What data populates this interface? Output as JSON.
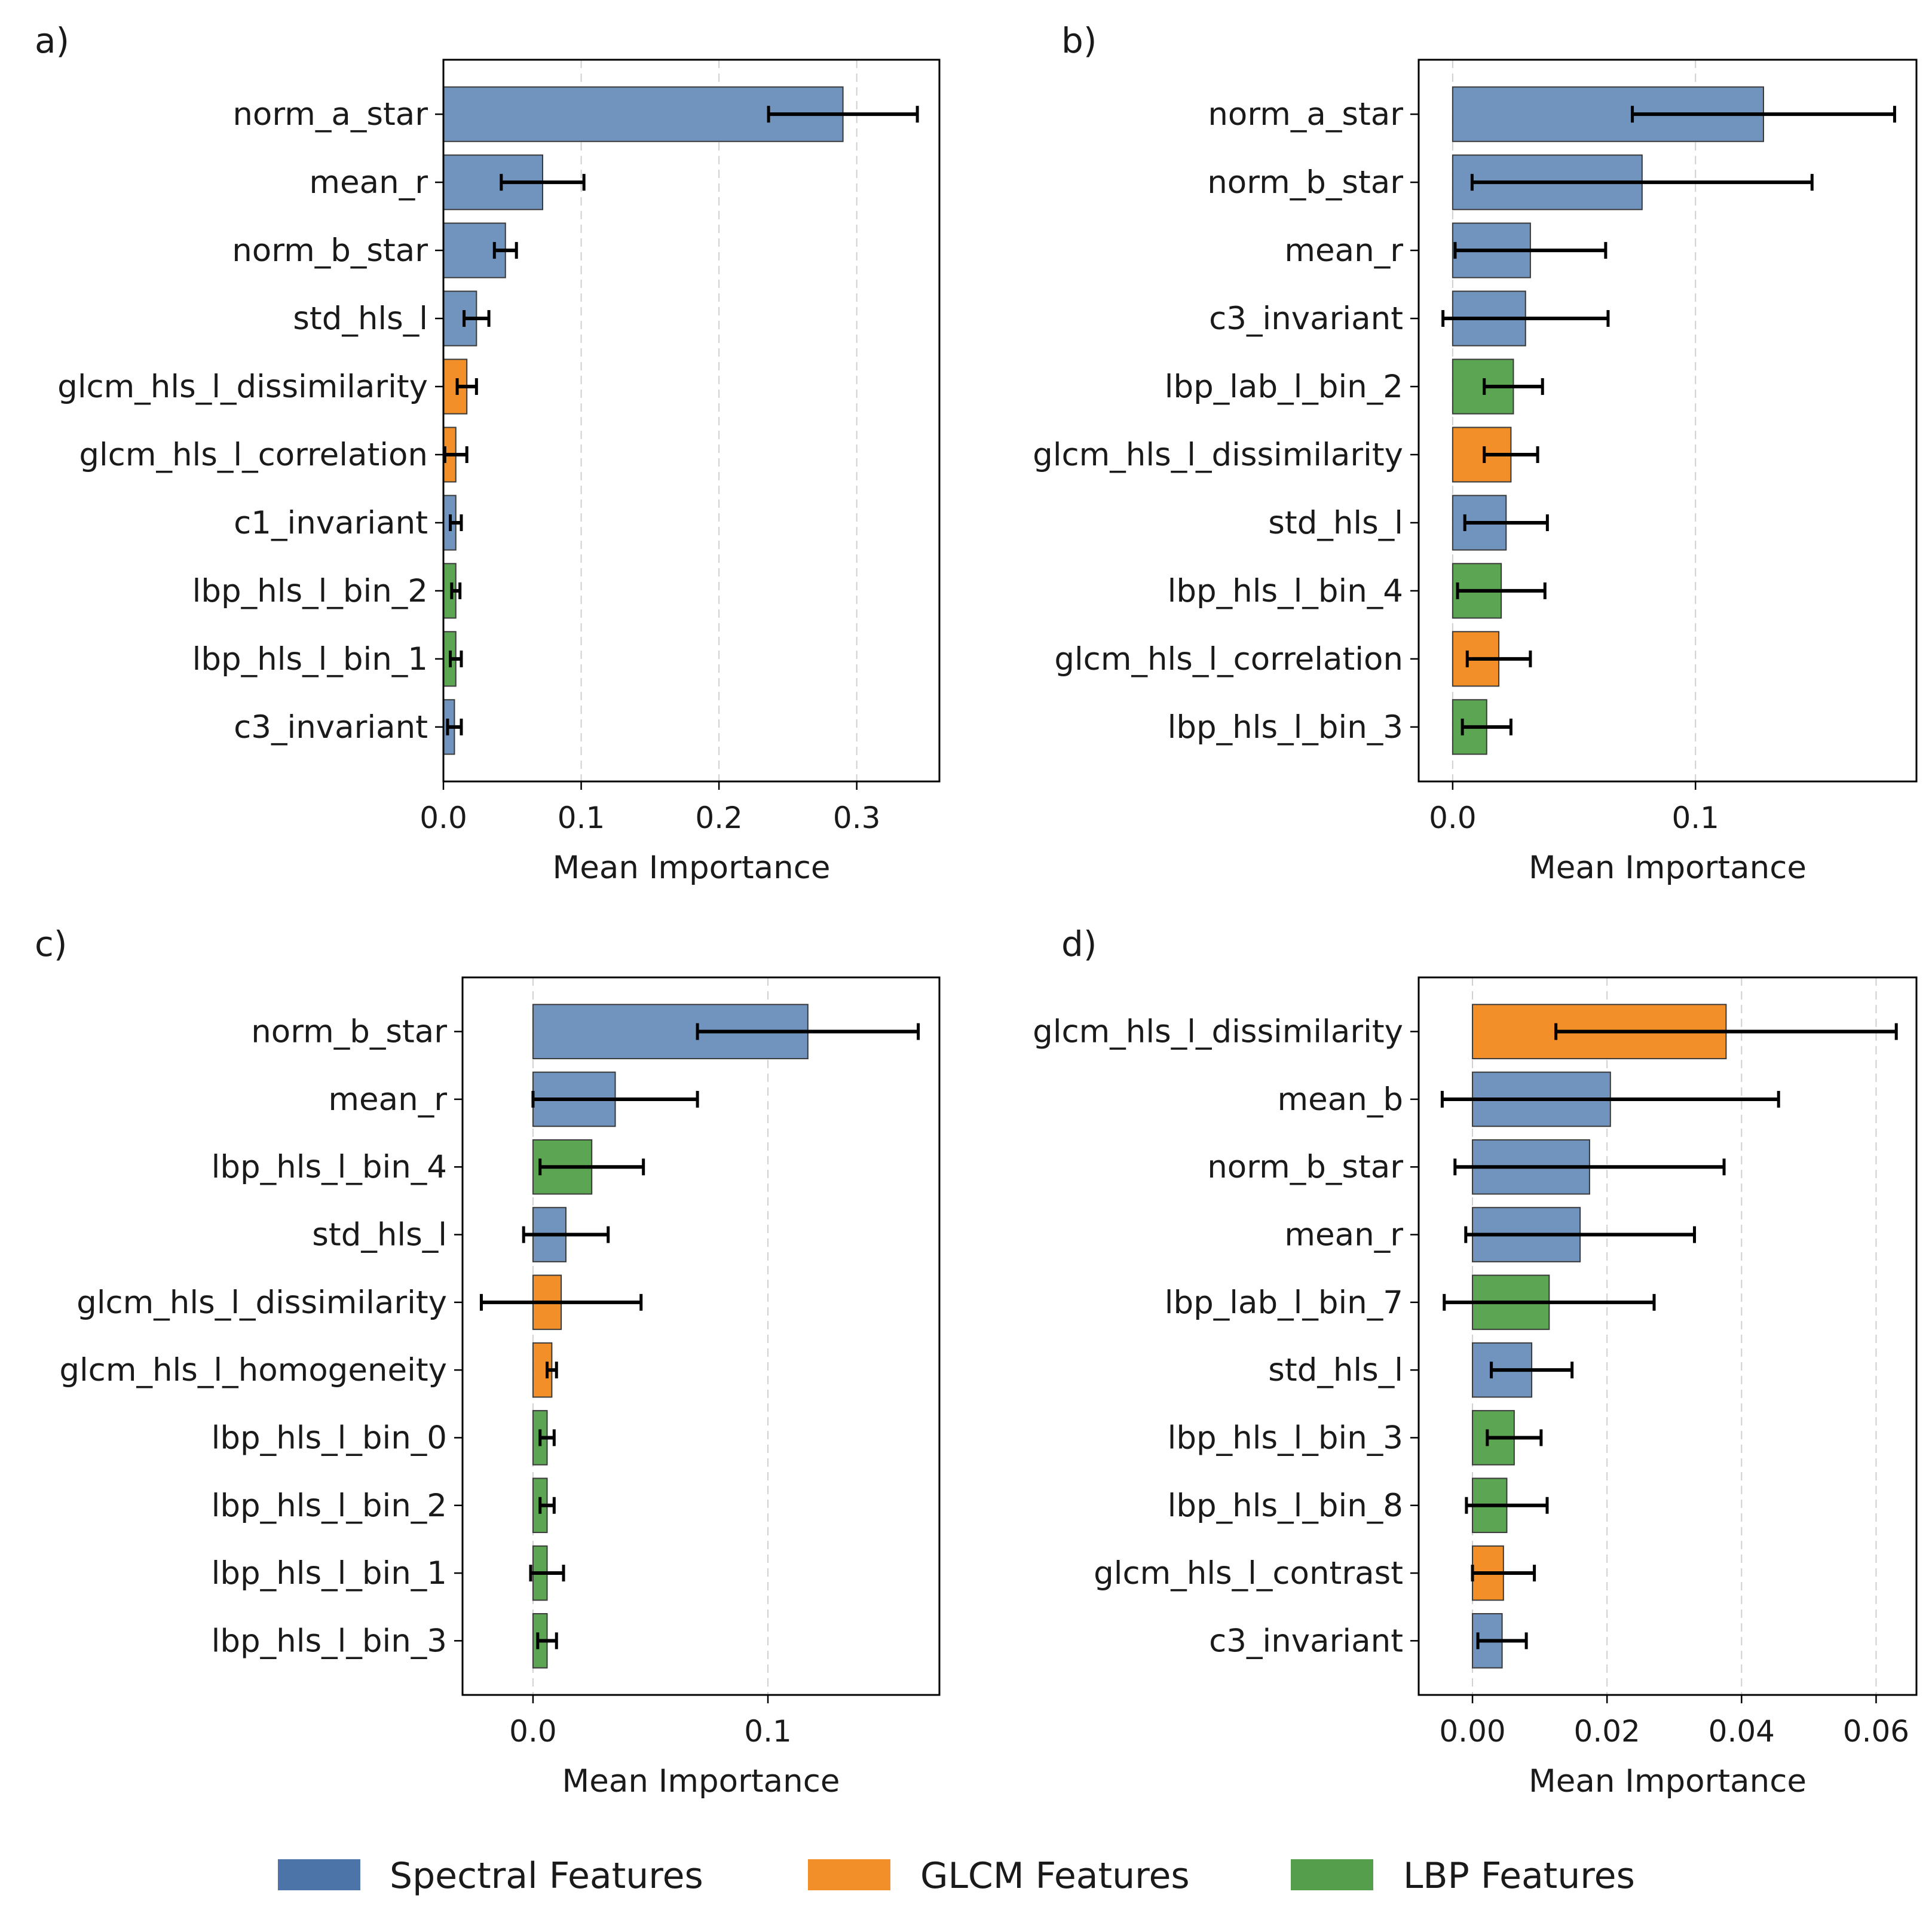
{
  "colors": {
    "spectral": "#7094BD",
    "glcm": "#F28F28",
    "lbp": "#5CA552",
    "legend_spectral": "#4C74A8",
    "legend_glcm": "#F28F28",
    "legend_lbp": "#559E4C",
    "grid": "#d0d0d0",
    "error_bar": "#000000"
  },
  "legend": {
    "items": [
      {
        "label": "Spectral Features",
        "group": "spectral"
      },
      {
        "label": "GLCM Features",
        "group": "glcm"
      },
      {
        "label": "LBP Features",
        "group": "lbp"
      }
    ],
    "placement": "bottom-center"
  },
  "chart_data": [
    {
      "panel_label": "a)",
      "type": "bar",
      "orientation": "horizontal",
      "xlabel": "Mean Importance",
      "xlim": [
        0.0,
        0.36
      ],
      "xticks": [
        0.0,
        0.1,
        0.2,
        0.3
      ],
      "xtick_labels": [
        "0.0",
        "0.1",
        "0.2",
        "0.3"
      ],
      "grid": "x-dashed",
      "bars": [
        {
          "label": "norm_a_star",
          "value": 0.29,
          "error": 0.054,
          "group": "spectral"
        },
        {
          "label": "mean_r",
          "value": 0.072,
          "error": 0.03,
          "group": "spectral"
        },
        {
          "label": "norm_b_star",
          "value": 0.045,
          "error": 0.008,
          "group": "spectral"
        },
        {
          "label": "std_hls_l",
          "value": 0.024,
          "error": 0.009,
          "group": "spectral"
        },
        {
          "label": "glcm_hls_l_dissimilarity",
          "value": 0.017,
          "error": 0.007,
          "group": "glcm"
        },
        {
          "label": "glcm_hls_l_correlation",
          "value": 0.009,
          "error": 0.008,
          "group": "glcm"
        },
        {
          "label": "c1_invariant",
          "value": 0.009,
          "error": 0.004,
          "group": "spectral"
        },
        {
          "label": "lbp_hls_l_bin_2",
          "value": 0.009,
          "error": 0.003,
          "group": "lbp"
        },
        {
          "label": "lbp_hls_l_bin_1",
          "value": 0.009,
          "error": 0.004,
          "group": "lbp"
        },
        {
          "label": "c3_invariant",
          "value": 0.008,
          "error": 0.005,
          "group": "spectral"
        }
      ]
    },
    {
      "panel_label": "b)",
      "type": "bar",
      "orientation": "horizontal",
      "xlabel": "Mean Importance",
      "xlim": [
        -0.014,
        0.191
      ],
      "xticks": [
        0.0,
        0.1
      ],
      "xtick_labels": [
        "0.0",
        "0.1"
      ],
      "grid": "x-dashed",
      "bars": [
        {
          "label": "norm_a_star",
          "value": 0.128,
          "error": 0.054,
          "group": "spectral"
        },
        {
          "label": "norm_b_star",
          "value": 0.078,
          "error": 0.07,
          "group": "spectral"
        },
        {
          "label": "mean_r",
          "value": 0.032,
          "error": 0.031,
          "group": "spectral"
        },
        {
          "label": "c3_invariant",
          "value": 0.03,
          "error": 0.034,
          "group": "spectral"
        },
        {
          "label": "lbp_lab_l_bin_2",
          "value": 0.025,
          "error": 0.012,
          "group": "lbp"
        },
        {
          "label": "glcm_hls_l_dissimilarity",
          "value": 0.024,
          "error": 0.011,
          "group": "glcm"
        },
        {
          "label": "std_hls_l",
          "value": 0.022,
          "error": 0.017,
          "group": "spectral"
        },
        {
          "label": "lbp_hls_l_bin_4",
          "value": 0.02,
          "error": 0.018,
          "group": "lbp"
        },
        {
          "label": "glcm_hls_l_correlation",
          "value": 0.019,
          "error": 0.013,
          "group": "glcm"
        },
        {
          "label": "lbp_hls_l_bin_3",
          "value": 0.014,
          "error": 0.01,
          "group": "lbp"
        }
      ]
    },
    {
      "panel_label": "c)",
      "type": "bar",
      "orientation": "horizontal",
      "xlabel": "Mean Importance",
      "xlim": [
        -0.03,
        0.173
      ],
      "xticks": [
        0.0,
        0.1
      ],
      "xtick_labels": [
        "0.0",
        "0.1"
      ],
      "grid": "x-dashed",
      "bars": [
        {
          "label": "norm_b_star",
          "value": 0.117,
          "error": 0.047,
          "group": "spectral"
        },
        {
          "label": "mean_r",
          "value": 0.035,
          "error": 0.035,
          "group": "spectral"
        },
        {
          "label": "lbp_hls_l_bin_4",
          "value": 0.025,
          "error": 0.022,
          "group": "lbp"
        },
        {
          "label": "std_hls_l",
          "value": 0.014,
          "error": 0.018,
          "group": "spectral"
        },
        {
          "label": "glcm_hls_l_dissimilarity",
          "value": 0.012,
          "error": 0.034,
          "group": "glcm"
        },
        {
          "label": "glcm_hls_l_homogeneity",
          "value": 0.008,
          "error": 0.002,
          "group": "glcm"
        },
        {
          "label": "lbp_hls_l_bin_0",
          "value": 0.006,
          "error": 0.003,
          "group": "lbp"
        },
        {
          "label": "lbp_hls_l_bin_2",
          "value": 0.006,
          "error": 0.003,
          "group": "lbp"
        },
        {
          "label": "lbp_hls_l_bin_1",
          "value": 0.006,
          "error": 0.007,
          "group": "lbp"
        },
        {
          "label": "lbp_hls_l_bin_3",
          "value": 0.006,
          "error": 0.004,
          "group": "lbp"
        }
      ]
    },
    {
      "panel_label": "d)",
      "type": "bar",
      "orientation": "horizontal",
      "xlabel": "Mean Importance",
      "xlim": [
        -0.008,
        0.066
      ],
      "xticks": [
        0.0,
        0.02,
        0.04,
        0.06
      ],
      "xtick_labels": [
        "0.00",
        "0.02",
        "0.04",
        "0.06"
      ],
      "grid": "x-dashed",
      "bars": [
        {
          "label": "glcm_hls_l_dissimilarity",
          "value": 0.0377,
          "error": 0.0253,
          "group": "glcm"
        },
        {
          "label": "mean_b",
          "value": 0.0205,
          "error": 0.025,
          "group": "spectral"
        },
        {
          "label": "norm_b_star",
          "value": 0.0174,
          "error": 0.02,
          "group": "spectral"
        },
        {
          "label": "mean_r",
          "value": 0.016,
          "error": 0.017,
          "group": "spectral"
        },
        {
          "label": "lbp_lab_l_bin_7",
          "value": 0.0114,
          "error": 0.0156,
          "group": "lbp"
        },
        {
          "label": "std_hls_l",
          "value": 0.0088,
          "error": 0.006,
          "group": "spectral"
        },
        {
          "label": "lbp_hls_l_bin_3",
          "value": 0.0062,
          "error": 0.004,
          "group": "lbp"
        },
        {
          "label": "lbp_hls_l_bin_8",
          "value": 0.0051,
          "error": 0.006,
          "group": "lbp"
        },
        {
          "label": "glcm_hls_l_contrast",
          "value": 0.0046,
          "error": 0.0046,
          "group": "glcm"
        },
        {
          "label": "c3_invariant",
          "value": 0.0044,
          "error": 0.0036,
          "group": "spectral"
        }
      ]
    }
  ]
}
